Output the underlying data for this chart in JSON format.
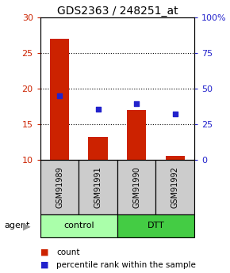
{
  "title": "GDS2363 / 248251_at",
  "samples": [
    "GSM91989",
    "GSM91991",
    "GSM91990",
    "GSM91992"
  ],
  "counts": [
    27.0,
    13.2,
    17.0,
    10.5
  ],
  "percentiles": [
    19.0,
    17.1,
    17.9,
    16.4
  ],
  "ylim_left": [
    10,
    30
  ],
  "ylim_right": [
    0,
    100
  ],
  "yticks_left": [
    10,
    15,
    20,
    25,
    30
  ],
  "yticks_right": [
    0,
    25,
    50,
    75,
    100
  ],
  "yticklabels_right": [
    "0",
    "25",
    "50",
    "75",
    "100%"
  ],
  "bar_color": "#cc2200",
  "dot_color": "#2222cc",
  "groups": [
    {
      "label": "control",
      "indices": [
        0,
        1
      ],
      "color": "#aaffaa"
    },
    {
      "label": "DTT",
      "indices": [
        2,
        3
      ],
      "color": "#44cc44"
    }
  ],
  "sample_box_color": "#cccccc",
  "bar_width": 0.5,
  "title_fontsize": 10,
  "tick_fontsize": 8,
  "sample_fontsize": 7,
  "agent_fontsize": 8,
  "legend_fontsize": 7.5
}
